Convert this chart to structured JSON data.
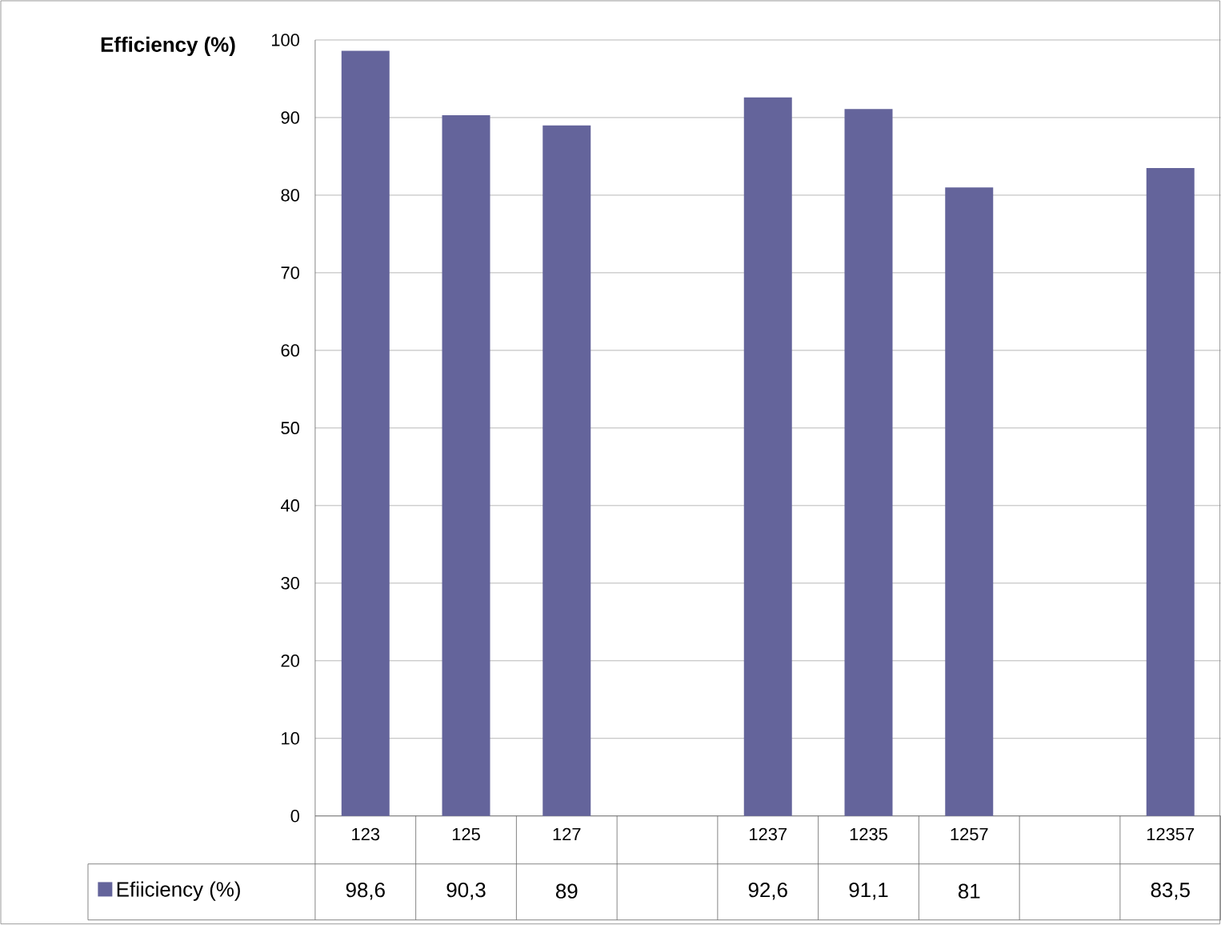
{
  "chart_data": {
    "type": "bar",
    "ylabel": "Efficiency (%)",
    "categories": [
      "123",
      "125",
      "127",
      null,
      "1237",
      "1235",
      "1257",
      null,
      "12357"
    ],
    "series": [
      {
        "name": "Efiiciency (%)",
        "color": "#64649b",
        "values": [
          98.6,
          90.3,
          89,
          null,
          92.6,
          91.1,
          81,
          null,
          83.5
        ],
        "value_labels": [
          "98,6",
          "90,3",
          "89",
          null,
          "92,6",
          "91,1",
          "81",
          null,
          "83,5"
        ]
      }
    ],
    "ylim": [
      0,
      100
    ],
    "yticks": [
      0,
      10,
      20,
      30,
      40,
      50,
      60,
      70,
      80,
      90,
      100
    ],
    "grid": "y",
    "legend": "bottom left"
  }
}
